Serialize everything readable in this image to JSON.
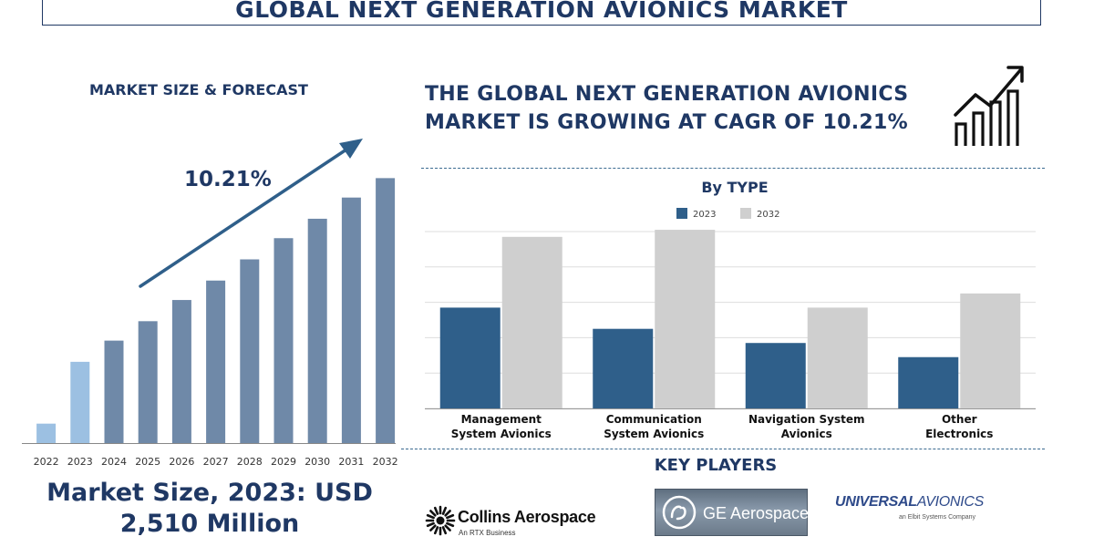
{
  "title": "GLOBAL NEXT GENERATION AVIONICS MARKET",
  "left_panel": {
    "heading": "MARKET SIZE & FORECAST",
    "market_size_line1": "Market Size, 2023: USD",
    "market_size_line2": "2,510 Million"
  },
  "headline": "THE GLOBAL NEXT GENERATION AVIONICS MARKET IS GROWING AT CAGR OF 10.21%",
  "key_players": {
    "heading": "KEY PLAYERS",
    "collins_name": "Collins Aerospace",
    "collins_sub": "An RTX Business",
    "ge_name": "GE Aerospace",
    "universal_bold": "UNIVERSAL",
    "universal_thin": "AVIONICS",
    "universal_sub": "an Elbit Systems Company"
  },
  "colors": {
    "navy": "#1f3864",
    "bar_2023": "#2f5f8a",
    "bar_2032": "#cfcfcf",
    "bar_left": "#6f89a8",
    "bar_left_highlight": "#9cc0e2"
  },
  "icons": [
    "growth-chart-icon",
    "trend-arrow-icon",
    "collins-logo-icon",
    "ge-monogram-icon"
  ],
  "chart_data": [
    {
      "type": "bar",
      "title": "",
      "categories": [
        "2022",
        "2023",
        "2024",
        "2025",
        "2026",
        "2027",
        "2028",
        "2029",
        "2030",
        "2031",
        "2032"
      ],
      "values": [
        1.1,
        4.6,
        5.8,
        6.9,
        8.1,
        9.2,
        10.4,
        11.6,
        12.7,
        13.9,
        15.0
      ],
      "highlight": [
        "2022",
        "2023"
      ],
      "annotation": "10.21%",
      "ylim": [
        0,
        16
      ],
      "grid": false
    },
    {
      "type": "bar",
      "title": "By TYPE",
      "categories": [
        "Management System Avionics",
        "Communication System Avionics",
        "Navigation System Avionics",
        "Other Electronics"
      ],
      "series": [
        {
          "name": "2023",
          "values": [
            2.85,
            2.25,
            1.85,
            1.45
          ]
        },
        {
          "name": "2032",
          "values": [
            4.85,
            5.05,
            2.85,
            3.25
          ]
        }
      ],
      "ylim": [
        0,
        5
      ],
      "grid": true,
      "legend": "top-center"
    }
  ]
}
